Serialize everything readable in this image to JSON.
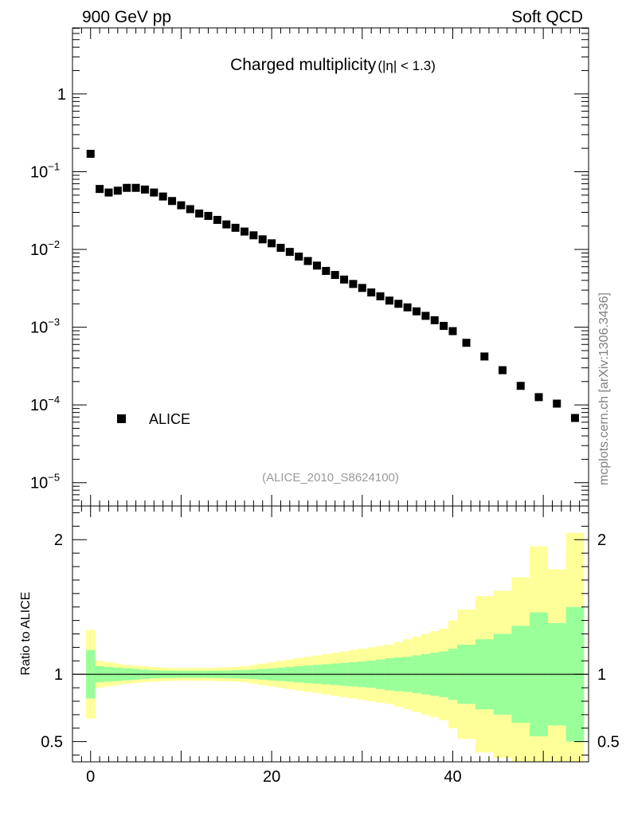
{
  "header": {
    "left": "900 GeV pp",
    "right": "Soft QCD"
  },
  "side_label": "mcplots.cern.ch [arXiv:1306.3436]",
  "colors": {
    "band_inner": "#99ff99",
    "band_outer": "#ffff99",
    "marker": "#000000",
    "text_gray": "#999999",
    "side_gray": "#808080"
  },
  "chart_data": {
    "type": "scatter",
    "title_main": "Charged multiplicity",
    "title_sub": "(|η| < 1.3)",
    "ref_label": "(ALICE_2010_S8624100)",
    "xlim": [
      -2,
      55
    ],
    "x_ticks": [
      0,
      20,
      40
    ],
    "main": {
      "yscale": "log",
      "ylim_log10": [
        -5.3,
        0.85
      ],
      "y_ticks": [
        {
          "exp": 0,
          "base": "1",
          "power": ""
        },
        {
          "exp": -1,
          "base": "10",
          "power": "−1"
        },
        {
          "exp": -2,
          "base": "10",
          "power": "−2"
        },
        {
          "exp": -3,
          "base": "10",
          "power": "−3"
        },
        {
          "exp": -4,
          "base": "10",
          "power": "−4"
        },
        {
          "exp": -5,
          "base": "10",
          "power": "−5"
        }
      ],
      "legend": [
        {
          "name": "ALICE",
          "marker": "square"
        }
      ],
      "series": [
        {
          "name": "ALICE",
          "points": [
            [
              0,
              0.17
            ],
            [
              1,
              0.06
            ],
            [
              2,
              0.054
            ],
            [
              3,
              0.057
            ],
            [
              4,
              0.062
            ],
            [
              5,
              0.062
            ],
            [
              6,
              0.059
            ],
            [
              7,
              0.054
            ],
            [
              8,
              0.048
            ],
            [
              9,
              0.042
            ],
            [
              10,
              0.037
            ],
            [
              11,
              0.033
            ],
            [
              12,
              0.029
            ],
            [
              13,
              0.027
            ],
            [
              14,
              0.024
            ],
            [
              15,
              0.021
            ],
            [
              16,
              0.019
            ],
            [
              17,
              0.017
            ],
            [
              18,
              0.0152
            ],
            [
              19,
              0.0135
            ],
            [
              20,
              0.012
            ],
            [
              21,
              0.0105
            ],
            [
              22,
              0.0093
            ],
            [
              23,
              0.0081
            ],
            [
              24,
              0.0071
            ],
            [
              25,
              0.0062
            ],
            [
              26,
              0.0053
            ],
            [
              27,
              0.0047
            ],
            [
              28,
              0.0041
            ],
            [
              29,
              0.0036
            ],
            [
              30,
              0.0032
            ],
            [
              31,
              0.0028
            ],
            [
              32,
              0.0025
            ],
            [
              33,
              0.0022
            ],
            [
              34,
              0.002
            ],
            [
              35,
              0.0018
            ],
            [
              36,
              0.0016
            ],
            [
              37,
              0.0014
            ],
            [
              38,
              0.00123
            ],
            [
              39,
              0.00104
            ],
            [
              40,
              0.00089
            ],
            [
              41.5,
              0.00063
            ],
            [
              43.5,
              0.00042
            ],
            [
              45.5,
              0.00028
            ],
            [
              47.5,
              0.000176
            ],
            [
              49.5,
              0.000126
            ],
            [
              51.5,
              0.000104
            ],
            [
              53.5,
              6.8e-05
            ]
          ]
        }
      ]
    },
    "ratio": {
      "ylabel": "Ratio to ALICE",
      "ylim": [
        0.35,
        2.25
      ],
      "y_ticks": [
        0.5,
        1,
        2
      ],
      "y_tick_labels": [
        "0.5",
        "1",
        "2"
      ],
      "reference_line": 1,
      "bands": {
        "edges": [
          -0.5,
          0.5,
          1.5,
          2.5,
          3.5,
          4.5,
          5.5,
          6.5,
          7.5,
          8.5,
          9.5,
          10.5,
          11.5,
          12.5,
          13.5,
          14.5,
          15.5,
          16.5,
          17.5,
          18.5,
          19.5,
          20.5,
          21.5,
          22.5,
          23.5,
          24.5,
          25.5,
          26.5,
          27.5,
          28.5,
          29.5,
          30.5,
          31.5,
          32.5,
          33.5,
          34.5,
          35.5,
          36.5,
          37.5,
          38.5,
          39.5,
          40.5,
          42.5,
          44.5,
          46.5,
          48.5,
          50.5,
          52.5,
          54.5
        ],
        "inner": [
          0.18,
          0.06,
          0.055,
          0.05,
          0.045,
          0.04,
          0.035,
          0.03,
          0.028,
          0.027,
          0.026,
          0.026,
          0.026,
          0.026,
          0.027,
          0.028,
          0.03,
          0.032,
          0.035,
          0.04,
          0.045,
          0.05,
          0.055,
          0.06,
          0.065,
          0.07,
          0.075,
          0.08,
          0.085,
          0.09,
          0.095,
          0.1,
          0.11,
          0.12,
          0.125,
          0.13,
          0.14,
          0.15,
          0.16,
          0.17,
          0.19,
          0.22,
          0.26,
          0.3,
          0.36,
          0.46,
          0.38,
          0.5
        ],
        "outer": [
          0.33,
          0.1,
          0.09,
          0.08,
          0.07,
          0.065,
          0.06,
          0.055,
          0.05,
          0.048,
          0.047,
          0.047,
          0.047,
          0.048,
          0.05,
          0.052,
          0.055,
          0.06,
          0.07,
          0.08,
          0.09,
          0.1,
          0.11,
          0.12,
          0.13,
          0.14,
          0.15,
          0.16,
          0.17,
          0.18,
          0.19,
          0.2,
          0.21,
          0.22,
          0.24,
          0.26,
          0.28,
          0.3,
          0.32,
          0.34,
          0.4,
          0.48,
          0.58,
          0.62,
          0.72,
          0.95,
          0.78,
          1.05
        ]
      }
    }
  }
}
